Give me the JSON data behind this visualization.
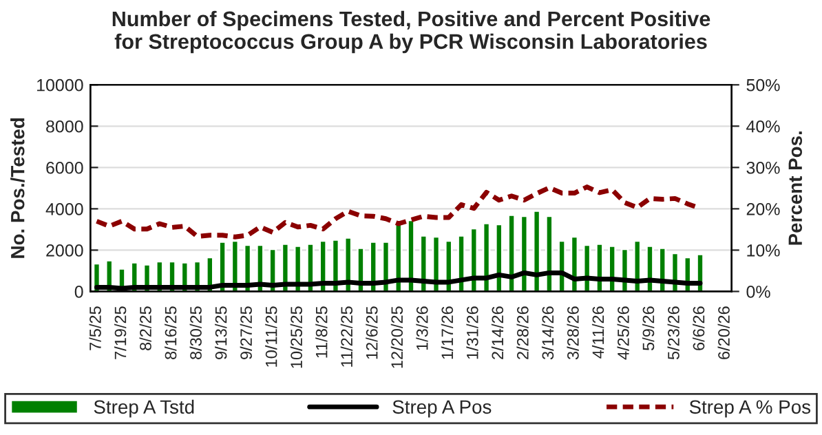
{
  "chart_data": {
    "type": "bar",
    "title": "Number of Specimens Tested, Positive and Percent Positive\nfor Streptococcus Group A by PCR Wisconsin Laboratories",
    "ylabel": "No. Pos./Tested",
    "y2label": "Percent Pos.",
    "categories": [
      "7/5/25",
      null,
      "7/19/25",
      null,
      "8/2/25",
      null,
      "8/16/25",
      null,
      "8/30/25",
      null,
      "9/13/25",
      null,
      "9/27/25",
      null,
      "10/11/25",
      null,
      "10/25/25",
      null,
      "11/8/25",
      null,
      "11/22/25",
      null,
      "12/6/25",
      null,
      "12/20/25",
      null,
      "1/3/26",
      null,
      "1/17/26",
      null,
      "1/31/26",
      null,
      "2/14/26",
      null,
      "2/28/26",
      null,
      "3/14/26",
      null,
      "3/28/26",
      null,
      "4/11/26",
      null,
      "4/25/26",
      null,
      "5/9/26",
      null,
      "5/23/26",
      null,
      "6/6/26",
      null,
      "6/20/26"
    ],
    "series": [
      {
        "name": "Strep A Tstd",
        "color": "#008000",
        "values": [
          1350,
          1500,
          1100,
          1400,
          1300,
          1450,
          1450,
          1400,
          1450,
          1650,
          2400,
          2450,
          2250,
          2250,
          2050,
          2300,
          2200,
          2300,
          2450,
          2500,
          2600,
          2100,
          2400,
          2400,
          3300,
          3450,
          2700,
          2650,
          2450,
          2700,
          3050,
          3300,
          3250,
          3700,
          3650,
          3900,
          3650,
          2450,
          2650,
          2250,
          2300,
          2200,
          2050,
          2450,
          2200,
          2100,
          1850,
          1650,
          1800,
          null,
          null
        ]
      },
      {
        "name": "Strep A Pos",
        "type": "line",
        "color": "#000000",
        "line_style": "solid",
        "values": [
          200,
          200,
          150,
          200,
          200,
          200,
          200,
          200,
          200,
          200,
          300,
          300,
          300,
          350,
          300,
          350,
          350,
          350,
          400,
          400,
          450,
          400,
          400,
          450,
          550,
          550,
          500,
          450,
          450,
          550,
          650,
          650,
          800,
          700,
          900,
          800,
          900,
          900,
          600,
          650,
          600,
          600,
          550,
          500,
          550,
          500,
          450,
          400,
          400,
          null,
          null
        ]
      },
      {
        "name": "Strep A % Pos",
        "type": "line",
        "axis": "y2",
        "color": "#8b0000",
        "line_style": "dashed",
        "values": [
          17.0,
          15.8,
          17.0,
          15.1,
          15.1,
          16.4,
          15.5,
          15.8,
          13.3,
          13.6,
          13.6,
          13.2,
          13.6,
          15.6,
          14.3,
          16.7,
          15.6,
          16.0,
          15.1,
          17.6,
          19.4,
          18.3,
          18.2,
          17.6,
          16.4,
          17.3,
          18.2,
          17.9,
          17.9,
          21.0,
          20.1,
          24.0,
          22.1,
          23.1,
          22.1,
          23.7,
          25.1,
          23.8,
          23.8,
          25.3,
          23.9,
          24.6,
          21.5,
          20.3,
          22.5,
          22.3,
          22.5,
          21.2,
          20.1,
          null,
          null
        ]
      }
    ],
    "ylim": [
      0,
      10000
    ],
    "yticks": [
      0,
      2000,
      4000,
      6000,
      8000,
      10000
    ],
    "y2lim": [
      0,
      50
    ],
    "y2ticks": [
      {
        "value": 0,
        "label": "0%"
      },
      {
        "value": 10,
        "label": "10%"
      },
      {
        "value": 20,
        "label": "20%"
      },
      {
        "value": 30,
        "label": "30%"
      },
      {
        "value": 40,
        "label": "40%"
      },
      {
        "value": 50,
        "label": "50%"
      }
    ],
    "grid": "y",
    "legend": "bottom"
  }
}
